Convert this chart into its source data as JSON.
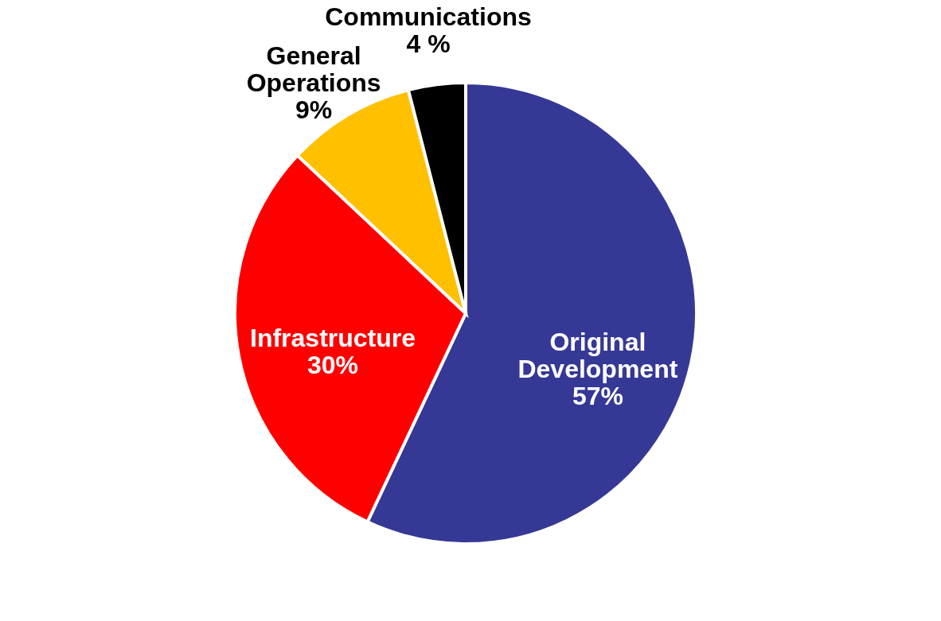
{
  "chart_data": {
    "type": "pie",
    "categories": [
      "Original Development",
      "Infrastructure",
      "General Operations",
      "Communications"
    ],
    "values": [
      57,
      30,
      9,
      4
    ],
    "value_labels": [
      "57%",
      "30%",
      "9%",
      "4 %"
    ],
    "colors": [
      "#363896",
      "#ff0000",
      "#ffc000",
      "#000000"
    ],
    "legend": false
  }
}
